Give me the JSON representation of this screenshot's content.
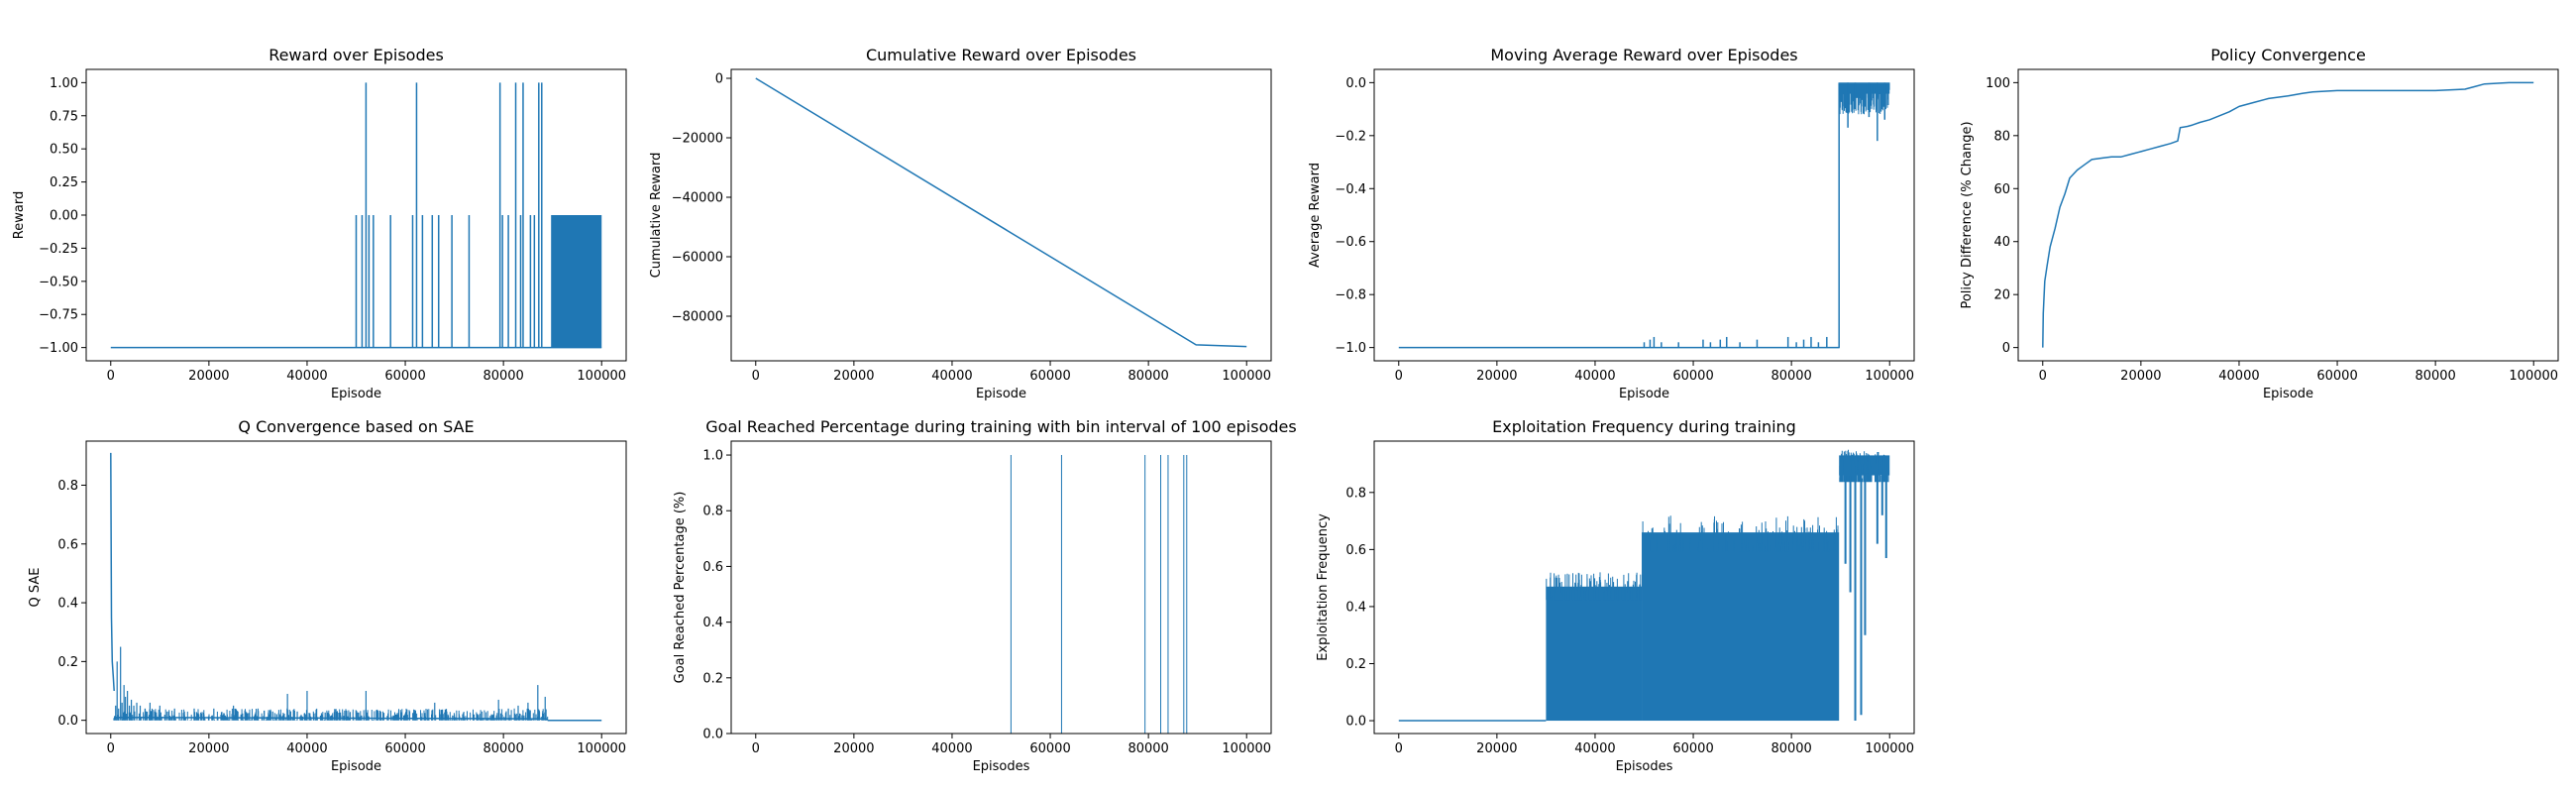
{
  "figure": {
    "suptitle": "",
    "line_color": "#1f77b4"
  },
  "chart_data": [
    {
      "id": "reward",
      "type": "line",
      "title": "Reward over Episodes",
      "xlabel": "Episode",
      "ylabel": "Reward",
      "xlim": [
        -5000,
        105000
      ],
      "ylim": [
        -1.1,
        1.1
      ],
      "xticks": [
        0,
        20000,
        40000,
        60000,
        80000,
        100000
      ],
      "yticks": [
        -1.0,
        -0.75,
        -0.5,
        -0.25,
        0.0,
        0.25,
        0.5,
        0.75,
        1.0
      ],
      "ytick_labels": [
        "−1.00",
        "−0.75",
        "−0.50",
        "−0.25",
        "0.00",
        "0.25",
        "0.50",
        "0.75",
        "1.00"
      ],
      "baseline": -1,
      "spikes": [
        {
          "x": 50000,
          "y": 0
        },
        {
          "x": 51200,
          "y": 0
        },
        {
          "x": 52000,
          "y": 1
        },
        {
          "x": 52600,
          "y": 0
        },
        {
          "x": 53500,
          "y": 0
        },
        {
          "x": 57000,
          "y": 0
        },
        {
          "x": 61500,
          "y": 0
        },
        {
          "x": 62300,
          "y": 1
        },
        {
          "x": 63500,
          "y": 0
        },
        {
          "x": 65500,
          "y": 0
        },
        {
          "x": 66800,
          "y": 0
        },
        {
          "x": 69500,
          "y": 0
        },
        {
          "x": 73000,
          "y": 0
        },
        {
          "x": 79300,
          "y": 1
        },
        {
          "x": 79800,
          "y": 0
        },
        {
          "x": 81000,
          "y": 0
        },
        {
          "x": 82500,
          "y": 1
        },
        {
          "x": 83500,
          "y": 0
        },
        {
          "x": 84000,
          "y": 1
        },
        {
          "x": 85500,
          "y": 0
        },
        {
          "x": 86300,
          "y": 0
        },
        {
          "x": 87200,
          "y": 1
        },
        {
          "x": 87800,
          "y": 1
        }
      ],
      "dense_band": {
        "x_start": 89700,
        "x_end": 100000,
        "y_low": -1,
        "y_high": 0
      }
    },
    {
      "id": "cumulative",
      "type": "line",
      "title": "Cumulative Reward over Episodes",
      "xlabel": "Episode",
      "ylabel": "Cumulative Reward",
      "xlim": [
        -5000,
        105000
      ],
      "ylim": [
        -95000,
        3000
      ],
      "xticks": [
        0,
        20000,
        40000,
        60000,
        80000,
        100000
      ],
      "yticks": [
        -80000,
        -60000,
        -40000,
        -20000,
        0
      ],
      "ytick_labels": [
        "−80000",
        "−60000",
        "−40000",
        "−20000",
        "0"
      ],
      "x": [
        0,
        89700,
        100000
      ],
      "y": [
        0,
        -89650,
        -90200
      ]
    },
    {
      "id": "moving_avg",
      "type": "line",
      "title": "Moving Average Reward over Episodes",
      "xlabel": "Episode",
      "ylabel": "Average Reward",
      "xlim": [
        -5000,
        105000
      ],
      "ylim": [
        -1.05,
        0.05
      ],
      "xticks": [
        0,
        20000,
        40000,
        60000,
        80000,
        100000
      ],
      "yticks": [
        -1.0,
        -0.8,
        -0.6,
        -0.4,
        -0.2,
        0.0
      ],
      "ytick_labels": [
        "−1.0",
        "−0.8",
        "−0.6",
        "−0.4",
        "−0.2",
        "0.0"
      ],
      "baseline": -1,
      "spikes": [
        {
          "x": 50000,
          "y": -0.98
        },
        {
          "x": 51200,
          "y": -0.97
        },
        {
          "x": 52000,
          "y": -0.96
        },
        {
          "x": 53500,
          "y": -0.98
        },
        {
          "x": 57000,
          "y": -0.98
        },
        {
          "x": 62000,
          "y": -0.97
        },
        {
          "x": 63500,
          "y": -0.98
        },
        {
          "x": 65500,
          "y": -0.97
        },
        {
          "x": 66800,
          "y": -0.96
        },
        {
          "x": 69500,
          "y": -0.98
        },
        {
          "x": 73000,
          "y": -0.97
        },
        {
          "x": 79300,
          "y": -0.96
        },
        {
          "x": 81000,
          "y": -0.98
        },
        {
          "x": 82500,
          "y": -0.97
        },
        {
          "x": 84000,
          "y": -0.96
        },
        {
          "x": 85500,
          "y": -0.98
        },
        {
          "x": 87200,
          "y": -0.96
        }
      ],
      "jump_x": 89700,
      "dense_band": {
        "x_start": 89800,
        "x_end": 100000,
        "y_low": -0.12,
        "y_high": 0.0
      },
      "dips": [
        {
          "x": 91500,
          "y": -0.17
        },
        {
          "x": 93000,
          "y": -0.1
        },
        {
          "x": 95800,
          "y": -0.13
        },
        {
          "x": 97500,
          "y": -0.22
        },
        {
          "x": 99000,
          "y": -0.14
        }
      ]
    },
    {
      "id": "policy",
      "type": "line",
      "title": "Policy Convergence",
      "xlabel": "Episode",
      "ylabel": "Policy Difference (% Change)",
      "xlim": [
        -5000,
        105000
      ],
      "ylim": [
        -5,
        105
      ],
      "xticks": [
        0,
        20000,
        40000,
        60000,
        80000,
        100000
      ],
      "yticks": [
        0,
        20,
        40,
        60,
        80,
        100
      ],
      "ytick_labels": [
        "0",
        "20",
        "40",
        "60",
        "80",
        "100"
      ],
      "x": [
        0,
        100,
        400,
        900,
        1500,
        2500,
        3500,
        4500,
        5500,
        7000,
        8500,
        10000,
        12000,
        14000,
        16000,
        18000,
        20000,
        22000,
        24000,
        26000,
        27500,
        28000,
        29500,
        30500,
        32000,
        34000,
        36000,
        38000,
        40000,
        43000,
        46000,
        50000,
        53000,
        55000,
        60000,
        70000,
        80000,
        86000,
        88000,
        90000,
        95000,
        100000
      ],
      "y": [
        0,
        13,
        25,
        31,
        38,
        45,
        53,
        58,
        64,
        67,
        69,
        71,
        71.5,
        72,
        72,
        73,
        74,
        75,
        76,
        77,
        78,
        83,
        83.5,
        84,
        85,
        86,
        87.5,
        89,
        91,
        92.5,
        94,
        95,
        96,
        96.5,
        97,
        97,
        97,
        97.5,
        98.5,
        99.5,
        100,
        100
      ]
    },
    {
      "id": "qsae",
      "type": "line",
      "title": "Q Convergence based on SAE",
      "xlabel": "Episode",
      "ylabel": "Q SAE",
      "xlim": [
        -5000,
        105000
      ],
      "ylim": [
        -0.045,
        0.95
      ],
      "xticks": [
        0,
        20000,
        40000,
        60000,
        80000,
        100000
      ],
      "yticks": [
        0.0,
        0.2,
        0.4,
        0.6,
        0.8
      ],
      "ytick_labels": [
        "0.0",
        "0.2",
        "0.4",
        "0.6",
        "0.8"
      ],
      "initial_spike": [
        {
          "x": 0,
          "y": 0.91
        },
        {
          "x": 150,
          "y": 0.35
        },
        {
          "x": 300,
          "y": 0.2
        },
        {
          "x": 500,
          "y": 0.15
        },
        {
          "x": 700,
          "y": 0.1
        }
      ],
      "spikes": [
        {
          "x": 1000,
          "y": 0.05
        },
        {
          "x": 1300,
          "y": 0.2
        },
        {
          "x": 1600,
          "y": 0.04
        },
        {
          "x": 2000,
          "y": 0.25
        },
        {
          "x": 2300,
          "y": 0.06
        },
        {
          "x": 2700,
          "y": 0.12
        },
        {
          "x": 3000,
          "y": 0.08
        },
        {
          "x": 3400,
          "y": 0.1
        },
        {
          "x": 3800,
          "y": 0.05
        },
        {
          "x": 4200,
          "y": 0.07
        },
        {
          "x": 4700,
          "y": 0.05
        },
        {
          "x": 5300,
          "y": 0.06
        },
        {
          "x": 6000,
          "y": 0.05
        },
        {
          "x": 7000,
          "y": 0.04
        },
        {
          "x": 8000,
          "y": 0.06
        },
        {
          "x": 9000,
          "y": 0.03
        },
        {
          "x": 10000,
          "y": 0.05
        },
        {
          "x": 11500,
          "y": 0.03
        },
        {
          "x": 13000,
          "y": 0.04
        },
        {
          "x": 15000,
          "y": 0.03
        },
        {
          "x": 17000,
          "y": 0.04
        },
        {
          "x": 19000,
          "y": 0.02
        },
        {
          "x": 21000,
          "y": 0.04
        },
        {
          "x": 23000,
          "y": 0.02
        },
        {
          "x": 25000,
          "y": 0.05
        },
        {
          "x": 27500,
          "y": 0.03
        },
        {
          "x": 30000,
          "y": 0.04
        },
        {
          "x": 33000,
          "y": 0.03
        },
        {
          "x": 36000,
          "y": 0.09
        },
        {
          "x": 38000,
          "y": 0.03
        },
        {
          "x": 40000,
          "y": 0.1
        },
        {
          "x": 43000,
          "y": 0.02
        },
        {
          "x": 46000,
          "y": 0.03
        },
        {
          "x": 48000,
          "y": 0.02
        },
        {
          "x": 52000,
          "y": 0.1
        },
        {
          "x": 55000,
          "y": 0.03
        },
        {
          "x": 58000,
          "y": 0.02
        },
        {
          "x": 62000,
          "y": 0.03
        },
        {
          "x": 66000,
          "y": 0.06
        },
        {
          "x": 70000,
          "y": 0.02
        },
        {
          "x": 74000,
          "y": 0.02
        },
        {
          "x": 79000,
          "y": 0.07
        },
        {
          "x": 81000,
          "y": 0.04
        },
        {
          "x": 83000,
          "y": 0.05
        },
        {
          "x": 85000,
          "y": 0.06
        },
        {
          "x": 87000,
          "y": 0.12
        },
        {
          "x": 88500,
          "y": 0.08
        }
      ],
      "tail_x": [
        89000,
        100000
      ],
      "tail_y": 0.0
    },
    {
      "id": "goal",
      "type": "line",
      "title": "Goal Reached Percentage during training with bin interval of 100 episodes",
      "xlabel": "Episodes",
      "ylabel": "Goal Reached Percentage (%)",
      "xlim": [
        -5000,
        105000
      ],
      "ylim": [
        0,
        1.05
      ],
      "xticks": [
        0,
        20000,
        40000,
        60000,
        80000,
        100000
      ],
      "yticks": [
        0.0,
        0.2,
        0.4,
        0.6,
        0.8,
        1.0
      ],
      "ytick_labels": [
        "0.0",
        "0.2",
        "0.4",
        "0.6",
        "0.8",
        "1.0"
      ],
      "spikes": [
        {
          "x": 52000,
          "y": 1
        },
        {
          "x": 62300,
          "y": 1
        },
        {
          "x": 79300,
          "y": 1
        },
        {
          "x": 82500,
          "y": 1
        },
        {
          "x": 84000,
          "y": 1
        },
        {
          "x": 87200,
          "y": 1
        },
        {
          "x": 87800,
          "y": 1
        }
      ]
    },
    {
      "id": "exploit",
      "type": "line",
      "title": "Exploitation Frequency during training",
      "xlabel": "Episodes",
      "ylabel": "Exploitation Frequency",
      "xlim": [
        -5000,
        105000
      ],
      "ylim": [
        -0.045,
        0.98
      ],
      "xticks": [
        0,
        20000,
        40000,
        60000,
        80000,
        100000
      ],
      "yticks": [
        0.0,
        0.2,
        0.4,
        0.6,
        0.8
      ],
      "ytick_labels": [
        "0.0",
        "0.2",
        "0.4",
        "0.6",
        "0.8"
      ],
      "zero_segment": [
        0,
        30000
      ],
      "bands": [
        {
          "x_start": 30000,
          "x_end": 49500,
          "y_low": 0.0,
          "y_high": 0.47,
          "y_peak": 0.52
        },
        {
          "x_start": 49500,
          "x_end": 89700,
          "y_low": 0.0,
          "y_high": 0.66,
          "y_peak": 0.72
        },
        {
          "x_start": 89700,
          "x_end": 100000,
          "y_low": 0.86,
          "y_high": 0.93,
          "y_peak": 0.95
        }
      ],
      "dips": [
        {
          "x": 91000,
          "y": 0.55
        },
        {
          "x": 92000,
          "y": 0.45
        },
        {
          "x": 93000,
          "y": 0.0
        },
        {
          "x": 94200,
          "y": 0.02
        },
        {
          "x": 95000,
          "y": 0.3
        },
        {
          "x": 97500,
          "y": 0.62
        },
        {
          "x": 98500,
          "y": 0.72
        },
        {
          "x": 99300,
          "y": 0.57
        }
      ]
    }
  ]
}
